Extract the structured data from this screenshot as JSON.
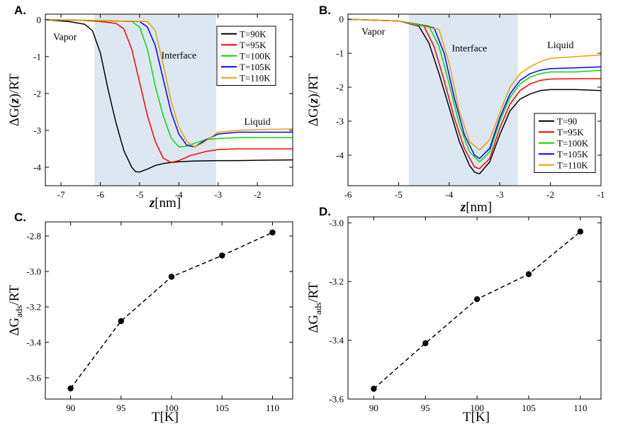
{
  "chart_data": [
    {
      "panel": "A.",
      "type": "line",
      "xlabel_var": "z",
      "xlabel_unit": "[nm]",
      "ylabel_pre": "ΔG(",
      "ylabel_var": "z",
      "ylabel_post": ")/RT",
      "xlim": [
        -7.4,
        -1.1
      ],
      "ylim": [
        -4.5,
        0.15
      ],
      "xticks": [
        -7,
        -6,
        -5,
        -4,
        -3,
        -2
      ],
      "yticks": [
        0,
        -1,
        -2,
        -3,
        -4
      ],
      "shaded_region": [
        -6.15,
        -3.05
      ],
      "annotations": [
        {
          "text": "Vapor",
          "x": -6.9,
          "y": -0.55
        },
        {
          "text": "Interface",
          "x": -4.0,
          "y": -1.05
        },
        {
          "text": "Liquid",
          "x": -2.0,
          "y": -2.85
        }
      ],
      "legend_position": "top-right",
      "series": [
        {
          "name": "T=90K",
          "color": "#000000",
          "x": [
            -7.4,
            -6.8,
            -6.4,
            -6.2,
            -6.0,
            -5.8,
            -5.6,
            -5.4,
            -5.2,
            -5.1,
            -5.0,
            -4.8,
            -4.6,
            -4.4,
            -4.2,
            -4.0,
            -3.6,
            -3.0,
            -2.5,
            -2.0,
            -1.1
          ],
          "y": [
            0,
            -0.05,
            -0.12,
            -0.3,
            -0.9,
            -1.9,
            -2.8,
            -3.55,
            -4.0,
            -4.12,
            -4.13,
            -4.05,
            -3.95,
            -3.9,
            -3.87,
            -3.85,
            -3.83,
            -3.82,
            -3.82,
            -3.81,
            -3.8
          ]
        },
        {
          "name": "T=95K",
          "color": "#ff0000",
          "x": [
            -7.4,
            -6.5,
            -6.0,
            -5.6,
            -5.4,
            -5.2,
            -5.0,
            -4.8,
            -4.6,
            -4.4,
            -4.2,
            -4.0,
            -3.7,
            -3.3,
            -3.0,
            -2.5,
            -2.0,
            -1.1
          ],
          "y": [
            0,
            -0.02,
            -0.05,
            -0.1,
            -0.25,
            -0.8,
            -1.7,
            -2.6,
            -3.3,
            -3.75,
            -3.87,
            -3.82,
            -3.68,
            -3.57,
            -3.52,
            -3.5,
            -3.5,
            -3.5
          ]
        },
        {
          "name": "T=100K",
          "color": "#00dd00",
          "x": [
            -7.4,
            -6.0,
            -5.2,
            -5.0,
            -4.8,
            -4.6,
            -4.4,
            -4.2,
            -4.0,
            -3.8,
            -3.6,
            -3.3,
            -3.0,
            -2.5,
            -2.0,
            -1.1
          ],
          "y": [
            0,
            -0.02,
            -0.05,
            -0.2,
            -0.8,
            -1.8,
            -2.6,
            -3.2,
            -3.45,
            -3.43,
            -3.35,
            -3.25,
            -3.22,
            -3.2,
            -3.2,
            -3.2
          ]
        },
        {
          "name": "T=105K",
          "color": "#0000ff",
          "x": [
            -7.4,
            -5.0,
            -4.8,
            -4.6,
            -4.4,
            -4.2,
            -4.0,
            -3.8,
            -3.6,
            -3.3,
            -3.0,
            -2.5,
            -2.0,
            -1.1
          ],
          "y": [
            0,
            -0.05,
            -0.2,
            -0.7,
            -1.6,
            -2.5,
            -3.1,
            -3.4,
            -3.45,
            -3.25,
            -3.1,
            -3.05,
            -3.05,
            -3.05
          ]
        },
        {
          "name": "T=110K",
          "color": "#e8a000",
          "x": [
            -7.4,
            -4.8,
            -4.6,
            -4.4,
            -4.2,
            -4.0,
            -3.8,
            -3.6,
            -3.4,
            -3.2,
            -3.0,
            -2.5,
            -2.0,
            -1.1
          ],
          "y": [
            0,
            -0.05,
            -0.3,
            -1.2,
            -2.2,
            -2.9,
            -3.3,
            -3.45,
            -3.35,
            -3.2,
            -3.05,
            -3.0,
            -2.98,
            -2.96
          ]
        }
      ]
    },
    {
      "panel": "B.",
      "type": "line",
      "xlabel_var": "z",
      "xlabel_unit": "[nm]",
      "ylabel_pre": "ΔG(",
      "ylabel_var": "z",
      "ylabel_post": ")/RT",
      "xlim": [
        -6.0,
        -1.0
      ],
      "ylim": [
        -4.9,
        0.15
      ],
      "xticks": [
        -6,
        -5,
        -4,
        -3,
        -2,
        -1
      ],
      "yticks": [
        0,
        -1,
        -2,
        -3,
        -4
      ],
      "shaded_region": [
        -4.8,
        -2.65
      ],
      "annotations": [
        {
          "text": "Vapor",
          "x": -5.5,
          "y": -0.45
        },
        {
          "text": "Interface",
          "x": -3.6,
          "y": -0.95
        },
        {
          "text": "Liquid",
          "x": -1.8,
          "y": -0.85
        }
      ],
      "legend_position": "bottom-right",
      "series": [
        {
          "name": "T=90",
          "color": "#000000",
          "x": [
            -6.0,
            -5.0,
            -4.6,
            -4.4,
            -4.2,
            -4.0,
            -3.8,
            -3.6,
            -3.5,
            -3.4,
            -3.2,
            -3.0,
            -2.8,
            -2.6,
            -2.4,
            -2.2,
            -2.0,
            -1.5,
            -1.0
          ],
          "y": [
            0,
            -0.05,
            -0.2,
            -0.7,
            -1.6,
            -2.6,
            -3.6,
            -4.3,
            -4.5,
            -4.55,
            -4.2,
            -3.4,
            -2.7,
            -2.35,
            -2.2,
            -2.1,
            -2.07,
            -2.07,
            -2.1
          ]
        },
        {
          "name": "T=95K",
          "color": "#ff0000",
          "x": [
            -6.0,
            -5.0,
            -4.5,
            -4.3,
            -4.1,
            -3.9,
            -3.7,
            -3.5,
            -3.4,
            -3.2,
            -3.0,
            -2.8,
            -2.6,
            -2.4,
            -2.2,
            -2.0,
            -1.5,
            -1.0
          ],
          "y": [
            0,
            -0.05,
            -0.2,
            -0.8,
            -1.8,
            -2.9,
            -3.8,
            -4.35,
            -4.4,
            -4.1,
            -3.2,
            -2.5,
            -2.1,
            -1.9,
            -1.8,
            -1.76,
            -1.75,
            -1.75
          ]
        },
        {
          "name": "T=100K",
          "color": "#00dd00",
          "x": [
            -6.0,
            -5.0,
            -4.4,
            -4.2,
            -4.0,
            -3.8,
            -3.6,
            -3.4,
            -3.2,
            -3.0,
            -2.8,
            -2.6,
            -2.4,
            -2.2,
            -2.0,
            -1.5,
            -1.0
          ],
          "y": [
            0,
            -0.05,
            -0.2,
            -0.8,
            -1.9,
            -3.1,
            -3.9,
            -4.2,
            -3.9,
            -3.0,
            -2.3,
            -1.9,
            -1.7,
            -1.6,
            -1.55,
            -1.55,
            -1.5
          ]
        },
        {
          "name": "T=105K",
          "color": "#0000ff",
          "x": [
            -6.0,
            -5.0,
            -4.3,
            -4.1,
            -3.9,
            -3.7,
            -3.5,
            -3.4,
            -3.2,
            -3.0,
            -2.8,
            -2.6,
            -2.4,
            -2.2,
            -2.0,
            -1.5,
            -1.0
          ],
          "y": [
            0,
            -0.05,
            -0.25,
            -1.0,
            -2.3,
            -3.4,
            -4.0,
            -4.1,
            -3.8,
            -2.9,
            -2.2,
            -1.8,
            -1.6,
            -1.5,
            -1.45,
            -1.43,
            -1.4
          ]
        },
        {
          "name": "T=110K",
          "color": "#e8a000",
          "x": [
            -6.0,
            -5.0,
            -4.2,
            -4.0,
            -3.8,
            -3.6,
            -3.4,
            -3.2,
            -3.0,
            -2.8,
            -2.6,
            -2.4,
            -2.2,
            -2.0,
            -1.5,
            -1.0
          ],
          "y": [
            0,
            -0.05,
            -0.3,
            -1.3,
            -2.7,
            -3.6,
            -3.85,
            -3.55,
            -2.75,
            -2.0,
            -1.6,
            -1.4,
            -1.25,
            -1.15,
            -1.1,
            -1.05
          ]
        }
      ]
    },
    {
      "panel": "C.",
      "type": "scatter",
      "xlabel": "T[K]",
      "ylabel_main": "ΔG",
      "ylabel_sub": "ads",
      "ylabel_post": "/RT",
      "xlim": [
        87.5,
        112
      ],
      "ylim": [
        -3.72,
        -2.72
      ],
      "xticks": [
        90,
        95,
        100,
        105,
        110
      ],
      "yticks": [
        -2.8,
        -3.0,
        -3.2,
        -3.4,
        -3.6
      ],
      "ytick_labels": [
        "-2.8",
        "-3.0",
        "-3.2",
        "-3.4",
        "-3.6"
      ],
      "x": [
        90,
        95,
        100,
        105,
        110
      ],
      "y": [
        -3.66,
        -3.28,
        -3.03,
        -2.91,
        -2.78
      ],
      "line_style": "dashed"
    },
    {
      "panel": "D.",
      "type": "scatter",
      "xlabel": "T[K]",
      "ylabel_main": "ΔG",
      "ylabel_sub": "ads",
      "ylabel_post": "/RT",
      "xlim": [
        87.5,
        112
      ],
      "ylim": [
        -3.6,
        -2.98
      ],
      "xticks": [
        90,
        95,
        100,
        105,
        110
      ],
      "yticks": [
        -3.0,
        -3.2,
        -3.4,
        -3.6
      ],
      "ytick_labels": [
        "-3.0",
        "-3.2",
        "-3.4",
        "-3.6"
      ],
      "x": [
        90,
        95,
        100,
        105,
        110
      ],
      "y": [
        -3.565,
        -3.41,
        -3.26,
        -3.175,
        -3.03
      ],
      "line_style": "dashed"
    }
  ]
}
